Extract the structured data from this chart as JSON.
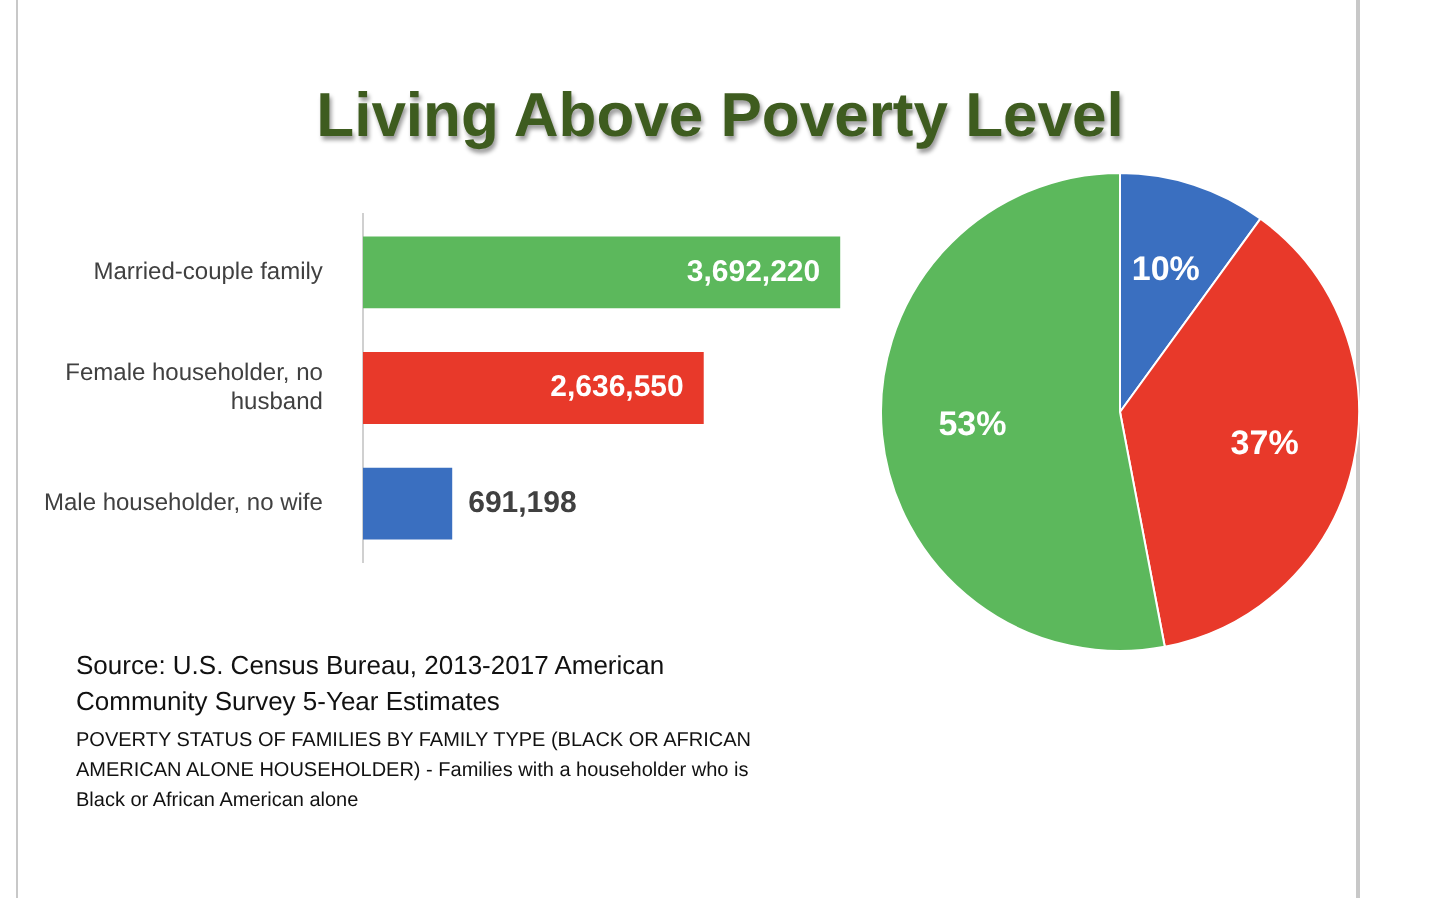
{
  "chart_data": [
    {
      "type": "bar",
      "title": "Living Above Poverty Level",
      "orientation": "horizontal",
      "categories": [
        "Married-couple family",
        "Female householder, no husband",
        "Male householder, no wife"
      ],
      "values": [
        3692220,
        2636550,
        691198
      ],
      "colors": [
        "#5cb85c",
        "#e8392a",
        "#3a6fc0"
      ],
      "value_labels": [
        "3,692,220",
        "2,636,550",
        "691,198"
      ],
      "annotations": [
        "Source: U.S. Census Bureau, 2013-2017 American Community Survey 5-Year Estimates",
        "POVERTY STATUS OF FAMILIES BY FAMILY TYPE (BLACK OR AFRICAN AMERICAN ALONE HOUSEHOLDER) - Families with a householder who is Black or African American alone"
      ]
    },
    {
      "type": "pie",
      "categories": [
        null,
        null,
        null
      ],
      "values": [
        10,
        37,
        53
      ],
      "colors": [
        "#3a6fc0",
        "#e8392a",
        "#5cb85c"
      ],
      "value_labels": [
        "10%",
        "37%",
        "53%"
      ]
    }
  ]
}
